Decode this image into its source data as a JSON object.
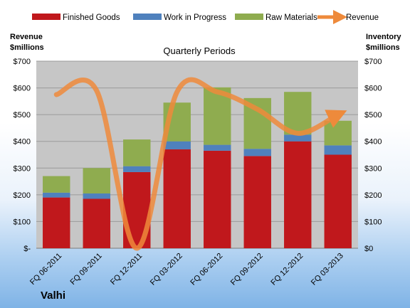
{
  "company": "Valhi",
  "colors": {
    "finished_goods": "#c0181c",
    "work_in_progress": "#4f81bd",
    "raw_materials": "#8fac4f",
    "revenue": "#ee8a3b",
    "plot_bg": "#c6c6c6"
  },
  "chart_data": {
    "type": "bar",
    "title": "Quarterly Periods",
    "ylabel_left": "Revenue\n$millions",
    "ylabel_right": "Inventory\n$millions",
    "categories": [
      "FQ 06-2011",
      "FQ 09-2011",
      "FQ 12-2011",
      "FQ 03-2012",
      "FQ 06-2012",
      "FQ 09-2012",
      "FQ 12-2012",
      "FQ 03-2013"
    ],
    "ylim": [
      0,
      700
    ],
    "yticks": [
      0,
      100,
      200,
      300,
      400,
      500,
      600,
      700
    ],
    "ytick_labels_left": [
      "$-",
      "$100",
      "$200",
      "$300",
      "$400",
      "$500",
      "$600",
      "$700"
    ],
    "ytick_labels_right": [
      "$0",
      "$100",
      "$200",
      "$300",
      "$400",
      "$500",
      "$600",
      "$700"
    ],
    "stacked": true,
    "series": [
      {
        "name": "Finished Goods",
        "values": [
          190,
          185,
          285,
          370,
          365,
          345,
          400,
          350
        ]
      },
      {
        "name": "Work in Progress",
        "values": [
          18,
          20,
          22,
          30,
          22,
          27,
          25,
          35
        ]
      },
      {
        "name": "Raw Materials",
        "values": [
          62,
          95,
          100,
          145,
          215,
          190,
          160,
          92
        ]
      }
    ],
    "line_series": {
      "name": "Revenue",
      "values": [
        575,
        590,
        0,
        585,
        585,
        520,
        430,
        500
      ]
    },
    "legend_position": "top",
    "grid": true
  }
}
